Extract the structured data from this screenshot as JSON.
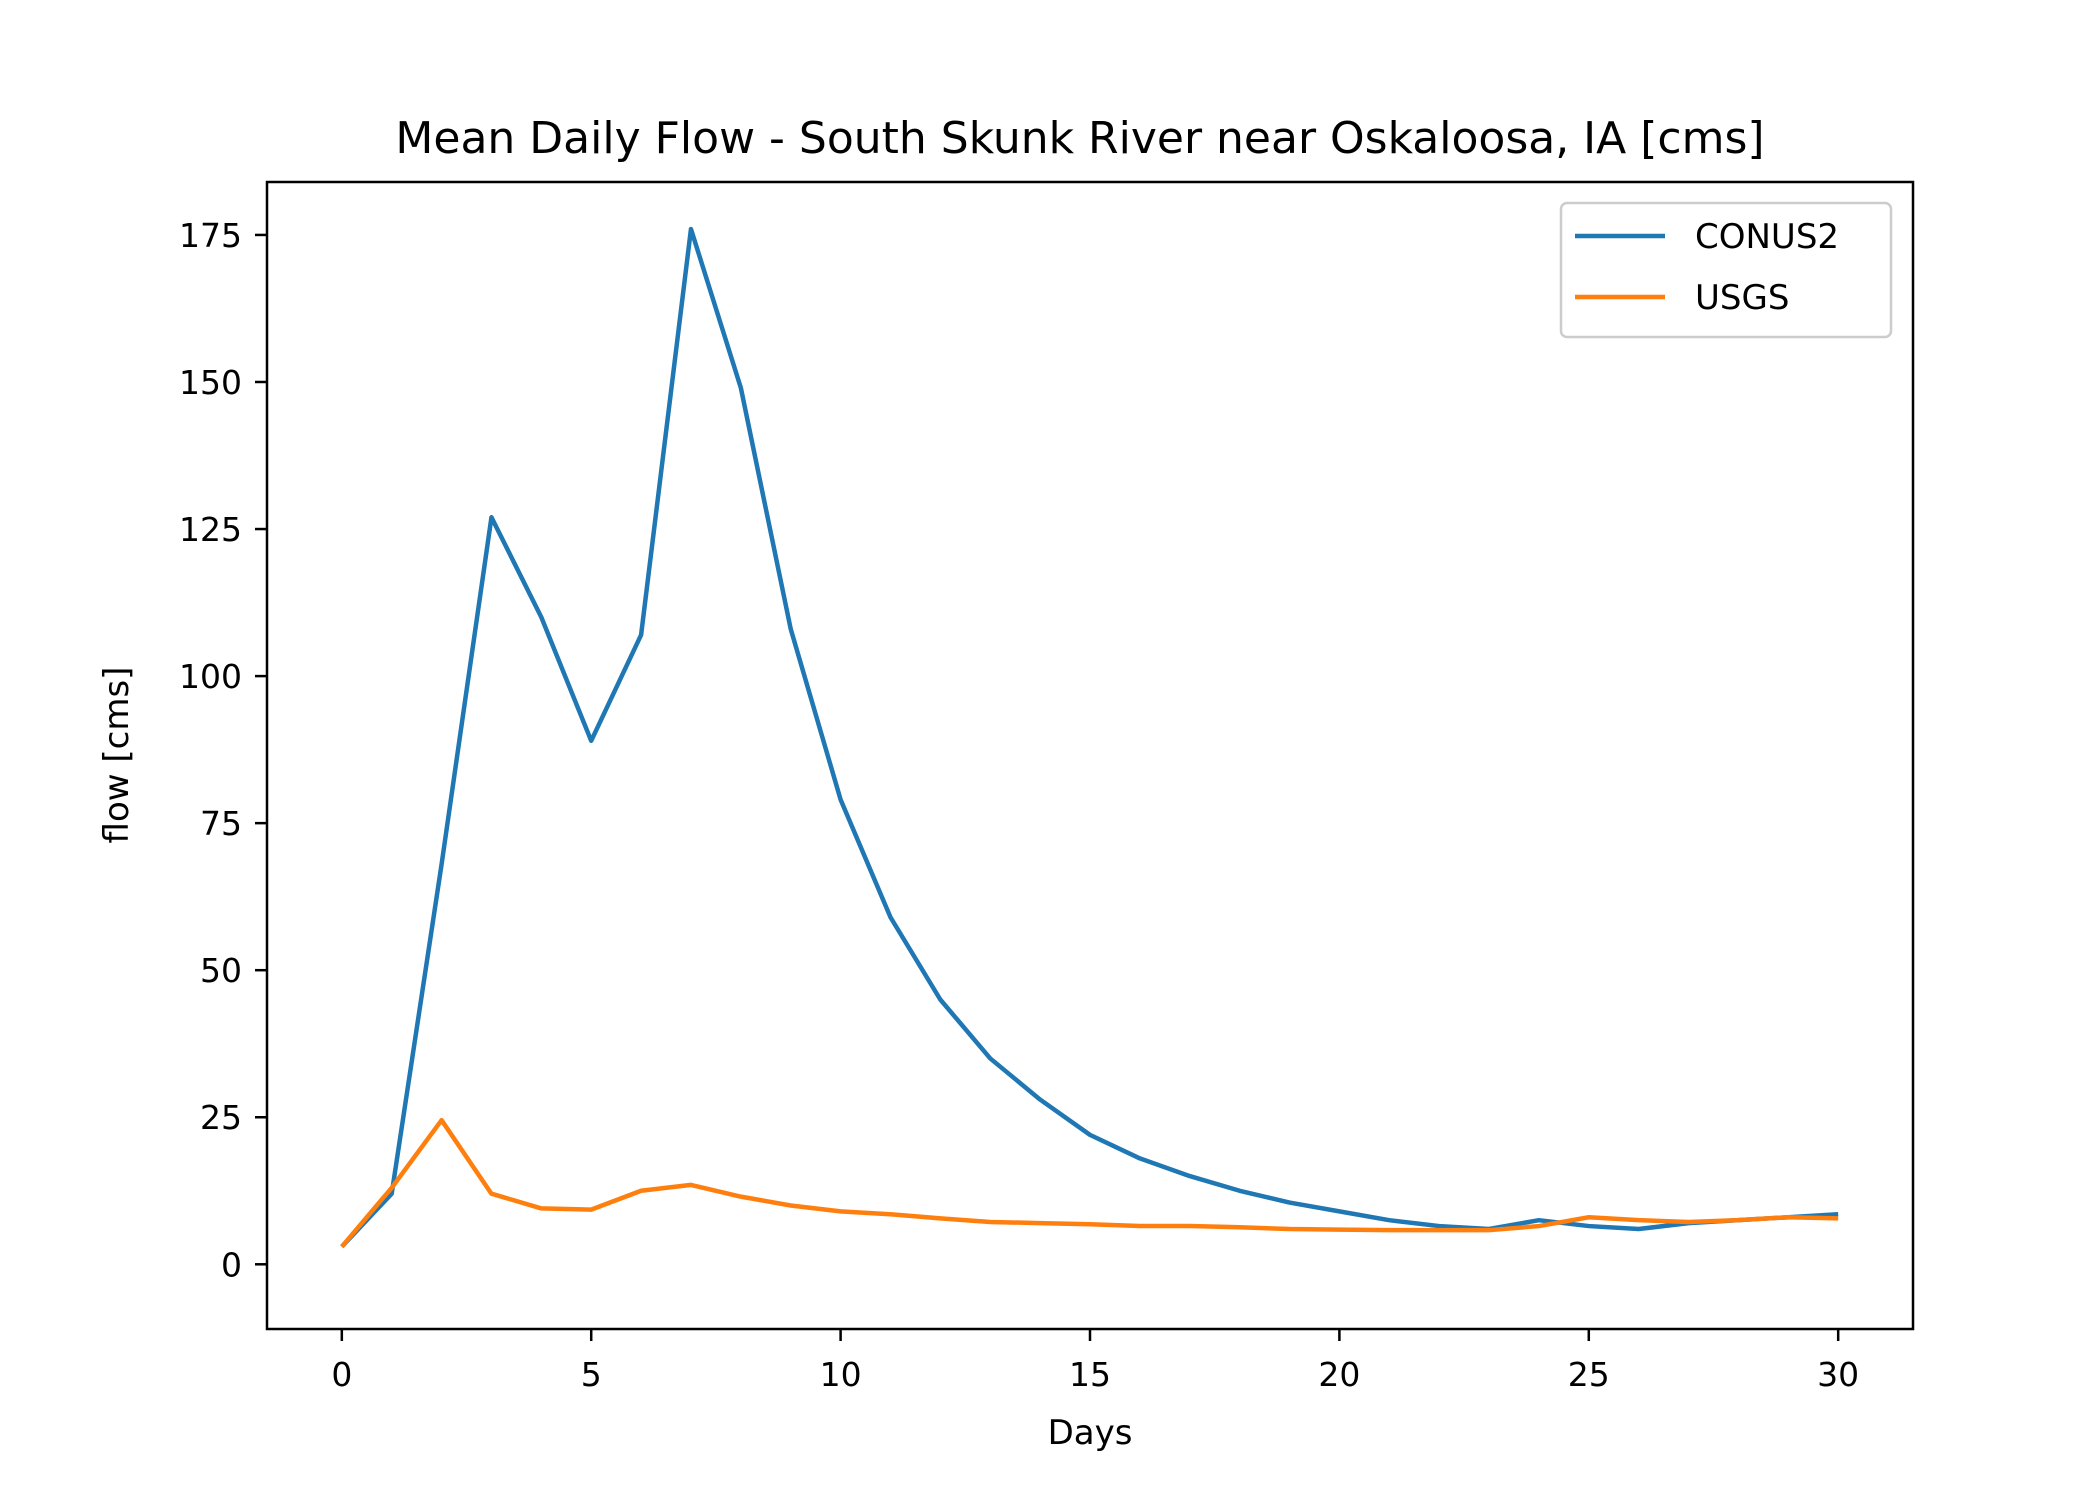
{
  "chart_data": {
    "type": "line",
    "title": "Mean Daily Flow - South Skunk River near Oskaloosa, IA [cms]",
    "xlabel": "Days",
    "ylabel": "flow [cms]",
    "xlim": [
      -1.5,
      31.5
    ],
    "ylim": [
      -11,
      184
    ],
    "xticks": [
      0,
      5,
      10,
      15,
      20,
      25,
      30
    ],
    "yticks": [
      0,
      25,
      50,
      75,
      100,
      125,
      150,
      175
    ],
    "grid": false,
    "legend_position": "top-right",
    "x": [
      0,
      1,
      2,
      3,
      4,
      5,
      6,
      7,
      8,
      9,
      10,
      11,
      12,
      13,
      14,
      15,
      16,
      17,
      18,
      19,
      20,
      21,
      22,
      23,
      24,
      25,
      26,
      27,
      28,
      29,
      30
    ],
    "series": [
      {
        "name": "CONUS2",
        "color": "#1f77b4",
        "values": [
          3,
          12,
          68,
          127,
          110,
          89,
          107,
          176,
          149,
          108,
          79,
          59,
          45,
          35,
          28,
          22,
          18,
          15,
          12.5,
          10.5,
          9,
          7.5,
          6.5,
          6,
          7.5,
          6.5,
          6,
          7,
          7.5,
          8,
          8.5
        ]
      },
      {
        "name": "USGS",
        "color": "#ff7f0e",
        "values": [
          3,
          13,
          24.5,
          12,
          9.5,
          9.3,
          12.5,
          13.5,
          11.5,
          10,
          9,
          8.5,
          7.8,
          7.2,
          7,
          6.8,
          6.5,
          6.5,
          6.3,
          6,
          5.9,
          5.8,
          5.8,
          5.8,
          6.5,
          8,
          7.5,
          7.2,
          7.5,
          8,
          7.8
        ]
      }
    ]
  }
}
